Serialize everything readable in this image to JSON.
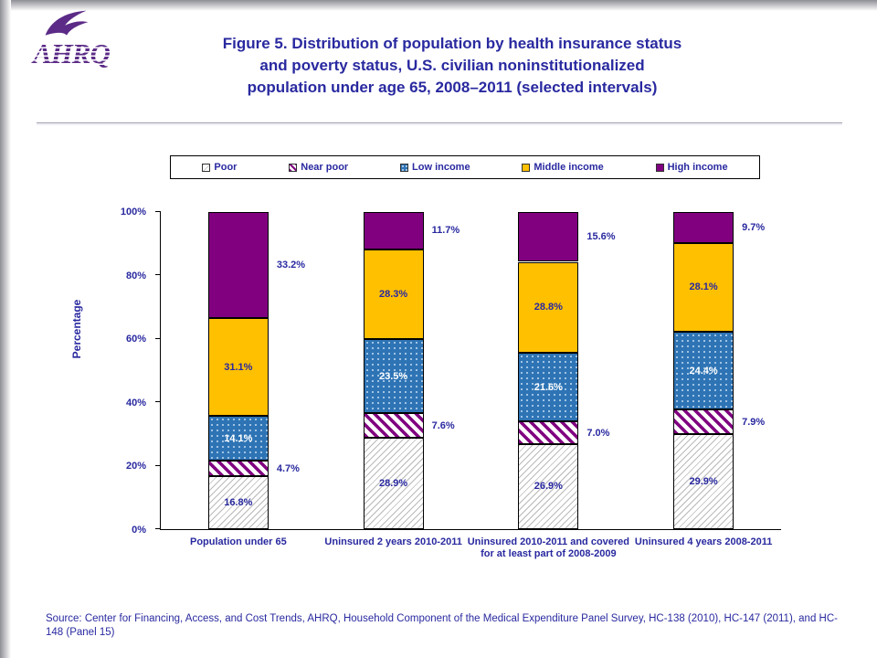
{
  "header": {
    "logo_text": "AHRQ",
    "title_lines": [
      "Figure 5. Distribution of population by health insurance status",
      "and poverty status, U.S. civilian noninstitutionalized",
      "population under age 65, 2008–2011 (selected intervals)"
    ]
  },
  "chart_data": {
    "type": "bar",
    "stacked": true,
    "title": "Distribution of population by health insurance status and poverty status",
    "ylabel": "Percentage",
    "xlabel": "",
    "ylim": [
      0,
      100
    ],
    "grid": false,
    "legend_position": "top",
    "yticks": [
      0,
      20,
      40,
      60,
      80,
      100
    ],
    "ytick_labels": [
      "0%",
      "20%",
      "40%",
      "60%",
      "80%",
      "100%"
    ],
    "categories": [
      "Population under 65",
      "Uninsured 2 years 2010-2011",
      "Uninsured 2010-2011 and covered for at least part of 2008-2009",
      "Uninsured 4 years 2008-2011"
    ],
    "series": [
      {
        "name": "Poor",
        "values": [
          16.8,
          28.9,
          26.9,
          29.9
        ],
        "fill": "#FFFFFF",
        "pattern": "hatch-gray",
        "label_position": "inside",
        "label_color": "#2929A0"
      },
      {
        "name": "Near poor",
        "values": [
          4.7,
          7.6,
          7.0,
          7.9
        ],
        "fill": "#800080",
        "pattern": "hatch-purple",
        "label_position": "outside",
        "label_color": "#2929A0"
      },
      {
        "name": "Low income",
        "values": [
          14.1,
          23.5,
          21.6,
          24.4
        ],
        "fill": "#2E74B5",
        "pattern": "dots-blue",
        "label_position": "inside",
        "label_color": "#FFFFFF"
      },
      {
        "name": "Middle income",
        "values": [
          31.1,
          28.3,
          28.8,
          28.1
        ],
        "fill": "#FFC000",
        "pattern": "solid",
        "label_position": "inside",
        "label_color": "#2929A0"
      },
      {
        "name": "High income",
        "values": [
          33.2,
          11.7,
          15.6,
          9.7
        ],
        "fill": "#800080",
        "pattern": "solid",
        "label_position": "outside",
        "label_color": "#2929A0"
      }
    ]
  },
  "footer": {
    "source": "Source: Center for Financing, Access, and Cost Trends, AHRQ, Household Component of the Medical Expenditure Panel Survey, HC-138 (2010), HC-147 (2011), and HC-148 (Panel 15)"
  },
  "colors": {
    "title_text": "#2929A0",
    "logo": "#5B2B87",
    "axis": "#000000",
    "poor_hatch": "#B9B9B9",
    "near_poor_purple": "#800080",
    "low_income_blue": "#2E74B5",
    "middle_income_gold": "#FFC000",
    "high_income_purple": "#800080"
  }
}
